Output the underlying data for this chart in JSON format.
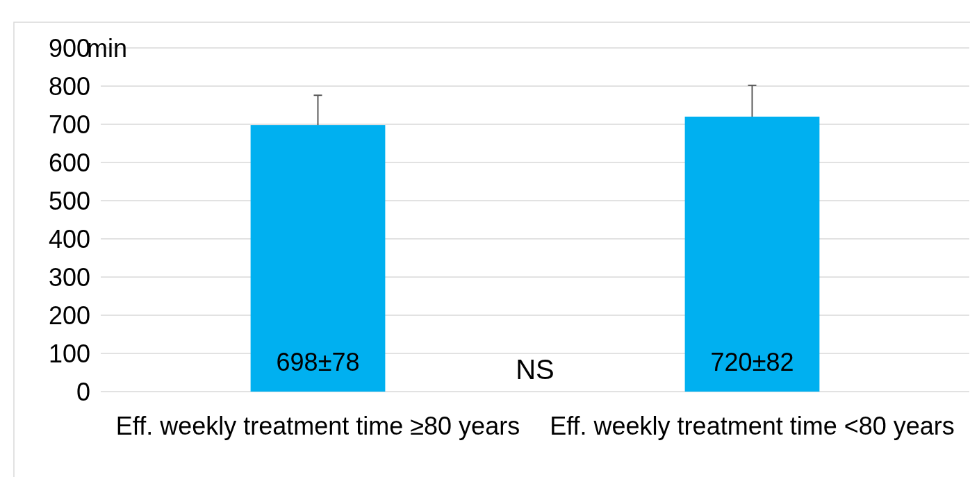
{
  "chart_data": {
    "type": "bar",
    "ylabel": "min",
    "categories": [
      "Eff. weekly treatment time ≥80 years",
      "Eff. weekly treatment time <80 years"
    ],
    "values": [
      698,
      720
    ],
    "color": "#00b0f0",
    "errors": [
      [
        698,
        776
      ],
      [
        720,
        802
      ]
    ],
    "value_labels": [
      "698±78",
      "720±82"
    ],
    "ylim": [
      0,
      900
    ],
    "yticks": [
      0,
      100,
      200,
      300,
      400,
      500,
      600,
      700,
      800,
      900
    ],
    "grid": "y",
    "annotations": [
      "NS"
    ]
  }
}
